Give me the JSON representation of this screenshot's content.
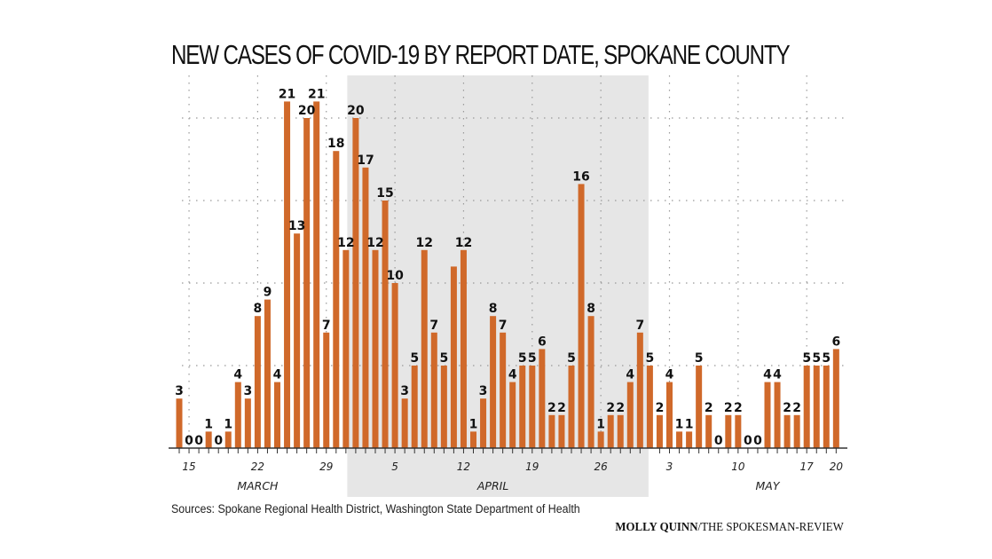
{
  "title": "NEW CASES OF COVID-19 BY REPORT DATE, SPOKANE COUNTY",
  "sources": "Sources: Spokane Regional Health District, Washington State Department of Health",
  "credit": {
    "author": "MOLLY QUINN",
    "outlet": "/THE SPOKESMAN-REVIEW"
  },
  "colors": {
    "bar": "#d0692a",
    "shade": "#e6e6e6",
    "grid": "#999999",
    "axis": "#333333"
  },
  "chart_data": {
    "type": "bar",
    "title": "NEW CASES OF COVID-19 BY REPORT DATE, SPOKANE COUNTY",
    "xlabel": "",
    "ylabel": "",
    "ylim": [
      0,
      22
    ],
    "grid": true,
    "y_gridlines": [
      5,
      10,
      15,
      20
    ],
    "shaded_range": {
      "from": "Apr 1",
      "to": "Apr 30"
    },
    "tick_labels": [
      {
        "date": "Mar 15",
        "label": "15"
      },
      {
        "date": "Mar 22",
        "label": "22"
      },
      {
        "date": "Mar 29",
        "label": "29"
      },
      {
        "date": "Apr 5",
        "label": "5"
      },
      {
        "date": "Apr 12",
        "label": "12"
      },
      {
        "date": "Apr 19",
        "label": "19"
      },
      {
        "date": "Apr 26",
        "label": "26"
      },
      {
        "date": "May 3",
        "label": "3"
      },
      {
        "date": "May 10",
        "label": "10"
      },
      {
        "date": "May 17",
        "label": "17"
      },
      {
        "date": "May 20",
        "label": "20"
      }
    ],
    "month_labels": [
      {
        "label": "MARCH",
        "center": "Mar 22"
      },
      {
        "label": "APRIL",
        "center": "Apr 15"
      },
      {
        "label": "MAY",
        "center": "May 13"
      }
    ],
    "categories": [
      "Mar 14",
      "Mar 15",
      "Mar 16",
      "Mar 17",
      "Mar 18",
      "Mar 19",
      "Mar 20",
      "Mar 21",
      "Mar 22",
      "Mar 23",
      "Mar 24",
      "Mar 25",
      "Mar 26",
      "Mar 27",
      "Mar 28",
      "Mar 29",
      "Mar 30",
      "Mar 31",
      "Apr 1",
      "Apr 2",
      "Apr 3",
      "Apr 4",
      "Apr 5",
      "Apr 6",
      "Apr 7",
      "Apr 8",
      "Apr 9",
      "Apr 10",
      "Apr 11",
      "Apr 12",
      "Apr 13",
      "Apr 14",
      "Apr 15",
      "Apr 16",
      "Apr 17",
      "Apr 18",
      "Apr 19",
      "Apr 20",
      "Apr 21",
      "Apr 22",
      "Apr 23",
      "Apr 24",
      "Apr 25",
      "Apr 26",
      "Apr 27",
      "Apr 28",
      "Apr 29",
      "Apr 30",
      "May 1",
      "May 2",
      "May 3",
      "May 4",
      "May 5",
      "May 6",
      "May 7",
      "May 8",
      "May 9",
      "May 10",
      "May 11",
      "May 12",
      "May 13",
      "May 14",
      "May 15",
      "May 16",
      "May 17",
      "May 18",
      "May 19",
      "May 20"
    ],
    "values": [
      3,
      0,
      0,
      1,
      0,
      1,
      4,
      3,
      8,
      9,
      4,
      21,
      13,
      20,
      21,
      7,
      18,
      12,
      20,
      17,
      12,
      15,
      10,
      3,
      5,
      12,
      7,
      5,
      11,
      12,
      1,
      3,
      8,
      7,
      4,
      5,
      5,
      6,
      2,
      2,
      5,
      16,
      8,
      1,
      2,
      2,
      4,
      7,
      5,
      2,
      4,
      1,
      1,
      5,
      2,
      0,
      2,
      2,
      0,
      0,
      4,
      4,
      2,
      2,
      5,
      5,
      5,
      6
    ],
    "unlabeled_bars": [
      "Apr 11"
    ]
  }
}
